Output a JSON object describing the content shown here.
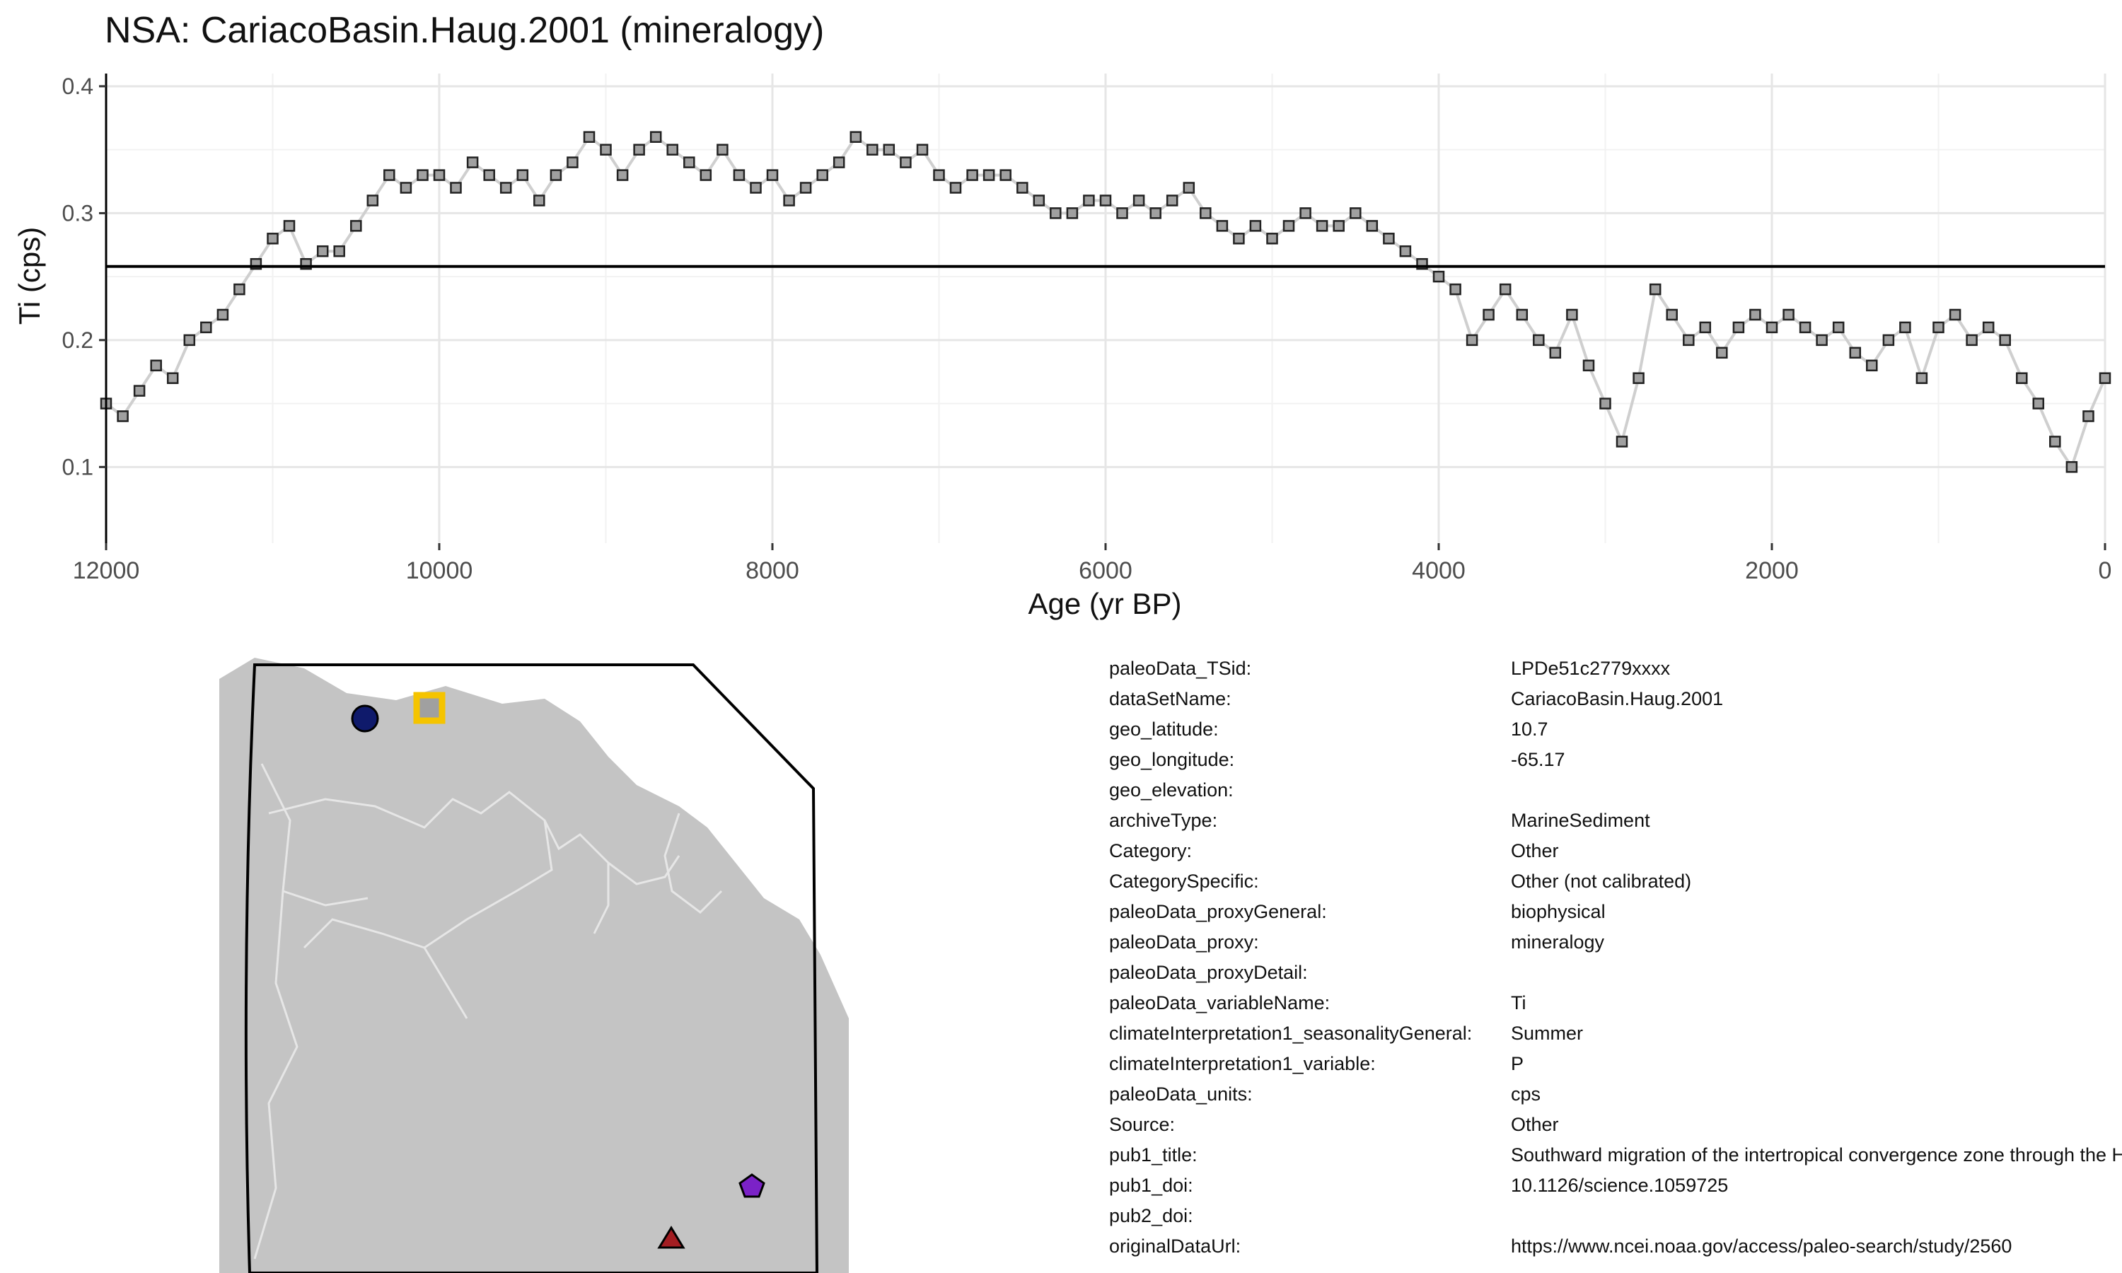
{
  "title": "NSA: CariacoBasin.Haug.2001 (mineralogy)",
  "chart_data": {
    "type": "line",
    "xlabel": "Age (yr BP)",
    "ylabel": "Ti (cps)",
    "xlim": [
      12000,
      0
    ],
    "ylim": [
      0.04,
      0.41
    ],
    "x_reversed": true,
    "xticks": [
      12000,
      10000,
      8000,
      6000,
      4000,
      2000,
      0
    ],
    "yticks": [
      0.1,
      0.2,
      0.3,
      0.4
    ],
    "xtick_labels": [
      "12000",
      "10000",
      "8000",
      "6000",
      "4000",
      "2000",
      "0"
    ],
    "ytick_labels": [
      "0.1",
      "0.2",
      "0.3",
      "0.4"
    ],
    "grid": true,
    "reference_line": 0.258,
    "marker": "square",
    "marker_color": "#a0a0a0",
    "line_color": "#cfcfcf",
    "series": [
      {
        "x": [
          12000,
          11900,
          11800,
          11700,
          11600,
          11500,
          11400,
          11300,
          11200,
          11100,
          11000,
          10900,
          10800,
          10700,
          10600,
          10500,
          10400,
          10300,
          10200,
          10100,
          10000,
          9900,
          9800,
          9700,
          9600,
          9500,
          9400,
          9300,
          9200,
          9100,
          9000,
          8900,
          8800,
          8700,
          8600,
          8500,
          8400,
          8300,
          8200,
          8100,
          8000,
          7900,
          7800,
          7700,
          7600,
          7500,
          7400,
          7300,
          7200,
          7100,
          7000,
          6900,
          6800,
          6700,
          6600,
          6500,
          6400,
          6300,
          6200,
          6100,
          6000,
          5900,
          5800,
          5700,
          5600,
          5500,
          5400,
          5300,
          5200,
          5100,
          5000,
          4900,
          4800,
          4700,
          4600,
          4500,
          4400,
          4300,
          4200,
          4100,
          4000,
          3900,
          3800,
          3700,
          3600,
          3500,
          3400,
          3300,
          3200,
          3100,
          3000,
          2900,
          2800,
          2700,
          2600,
          2500,
          2400,
          2300,
          2200,
          2100,
          2000,
          1900,
          1800,
          1700,
          1600,
          1500,
          1400,
          1300,
          1200,
          1100,
          1000,
          900,
          800,
          700,
          600,
          500,
          400,
          300,
          200,
          100,
          0
        ],
        "y": [
          0.15,
          0.14,
          0.16,
          0.18,
          0.17,
          0.2,
          0.21,
          0.22,
          0.24,
          0.26,
          0.28,
          0.29,
          0.26,
          0.27,
          0.27,
          0.29,
          0.31,
          0.33,
          0.32,
          0.33,
          0.33,
          0.32,
          0.34,
          0.33,
          0.32,
          0.33,
          0.31,
          0.33,
          0.34,
          0.36,
          0.35,
          0.33,
          0.35,
          0.36,
          0.35,
          0.34,
          0.33,
          0.35,
          0.33,
          0.32,
          0.33,
          0.31,
          0.32,
          0.33,
          0.34,
          0.36,
          0.35,
          0.35,
          0.34,
          0.35,
          0.33,
          0.32,
          0.33,
          0.33,
          0.33,
          0.32,
          0.31,
          0.3,
          0.3,
          0.31,
          0.31,
          0.3,
          0.31,
          0.3,
          0.31,
          0.32,
          0.3,
          0.29,
          0.28,
          0.29,
          0.28,
          0.29,
          0.3,
          0.29,
          0.29,
          0.3,
          0.29,
          0.28,
          0.27,
          0.26,
          0.25,
          0.24,
          0.2,
          0.22,
          0.24,
          0.22,
          0.2,
          0.19,
          0.22,
          0.18,
          0.15,
          0.12,
          0.17,
          0.24,
          0.22,
          0.2,
          0.21,
          0.19,
          0.21,
          0.22,
          0.21,
          0.22,
          0.21,
          0.2,
          0.21,
          0.19,
          0.18,
          0.2,
          0.21,
          0.17,
          0.21,
          0.22,
          0.2,
          0.21,
          0.2,
          0.17,
          0.15,
          0.12,
          0.1,
          0.14,
          0.17
        ]
      }
    ]
  },
  "map": {
    "land_color": "#c4c4c4",
    "border_color": "#e6e6e6",
    "markers": [
      {
        "shape": "circle",
        "color": "#0f1a6b"
      },
      {
        "shape": "square",
        "color": "#a0a0a0",
        "outline": "#f5c400"
      },
      {
        "shape": "pentagon",
        "color": "#7b22c7"
      },
      {
        "shape": "triangle",
        "color": "#a31d22"
      }
    ]
  },
  "metadata": [
    {
      "key": "paleoData_TSid:",
      "value": "LPDe51c2779xxxx"
    },
    {
      "key": "dataSetName:",
      "value": "CariacoBasin.Haug.2001"
    },
    {
      "key": "geo_latitude:",
      "value": "10.7"
    },
    {
      "key": "geo_longitude:",
      "value": "-65.17"
    },
    {
      "key": "geo_elevation:",
      "value": ""
    },
    {
      "key": "archiveType:",
      "value": "MarineSediment"
    },
    {
      "key": "Category:",
      "value": "Other"
    },
    {
      "key": "CategorySpecific:",
      "value": "Other (not calibrated)"
    },
    {
      "key": "paleoData_proxyGeneral:",
      "value": "biophysical"
    },
    {
      "key": "paleoData_proxy:",
      "value": "mineralogy"
    },
    {
      "key": "paleoData_proxyDetail:",
      "value": ""
    },
    {
      "key": "paleoData_variableName:",
      "value": "Ti"
    },
    {
      "key": "climateInterpretation1_seasonalityGeneral:",
      "value": "Summer"
    },
    {
      "key": "climateInterpretation1_variable:",
      "value": "P"
    },
    {
      "key": "paleoData_units:",
      "value": "cps"
    },
    {
      "key": "Source:",
      "value": "Other"
    },
    {
      "key": "pub1_title:",
      "value": "Southward migration of the intertropical convergence zone through the Holocene"
    },
    {
      "key": "pub1_doi:",
      "value": "10.1126/science.1059725"
    },
    {
      "key": "pub2_doi:",
      "value": ""
    },
    {
      "key": "originalDataUrl:",
      "value": "https://www.ncei.noaa.gov/access/paleo-search/study/2560"
    }
  ]
}
